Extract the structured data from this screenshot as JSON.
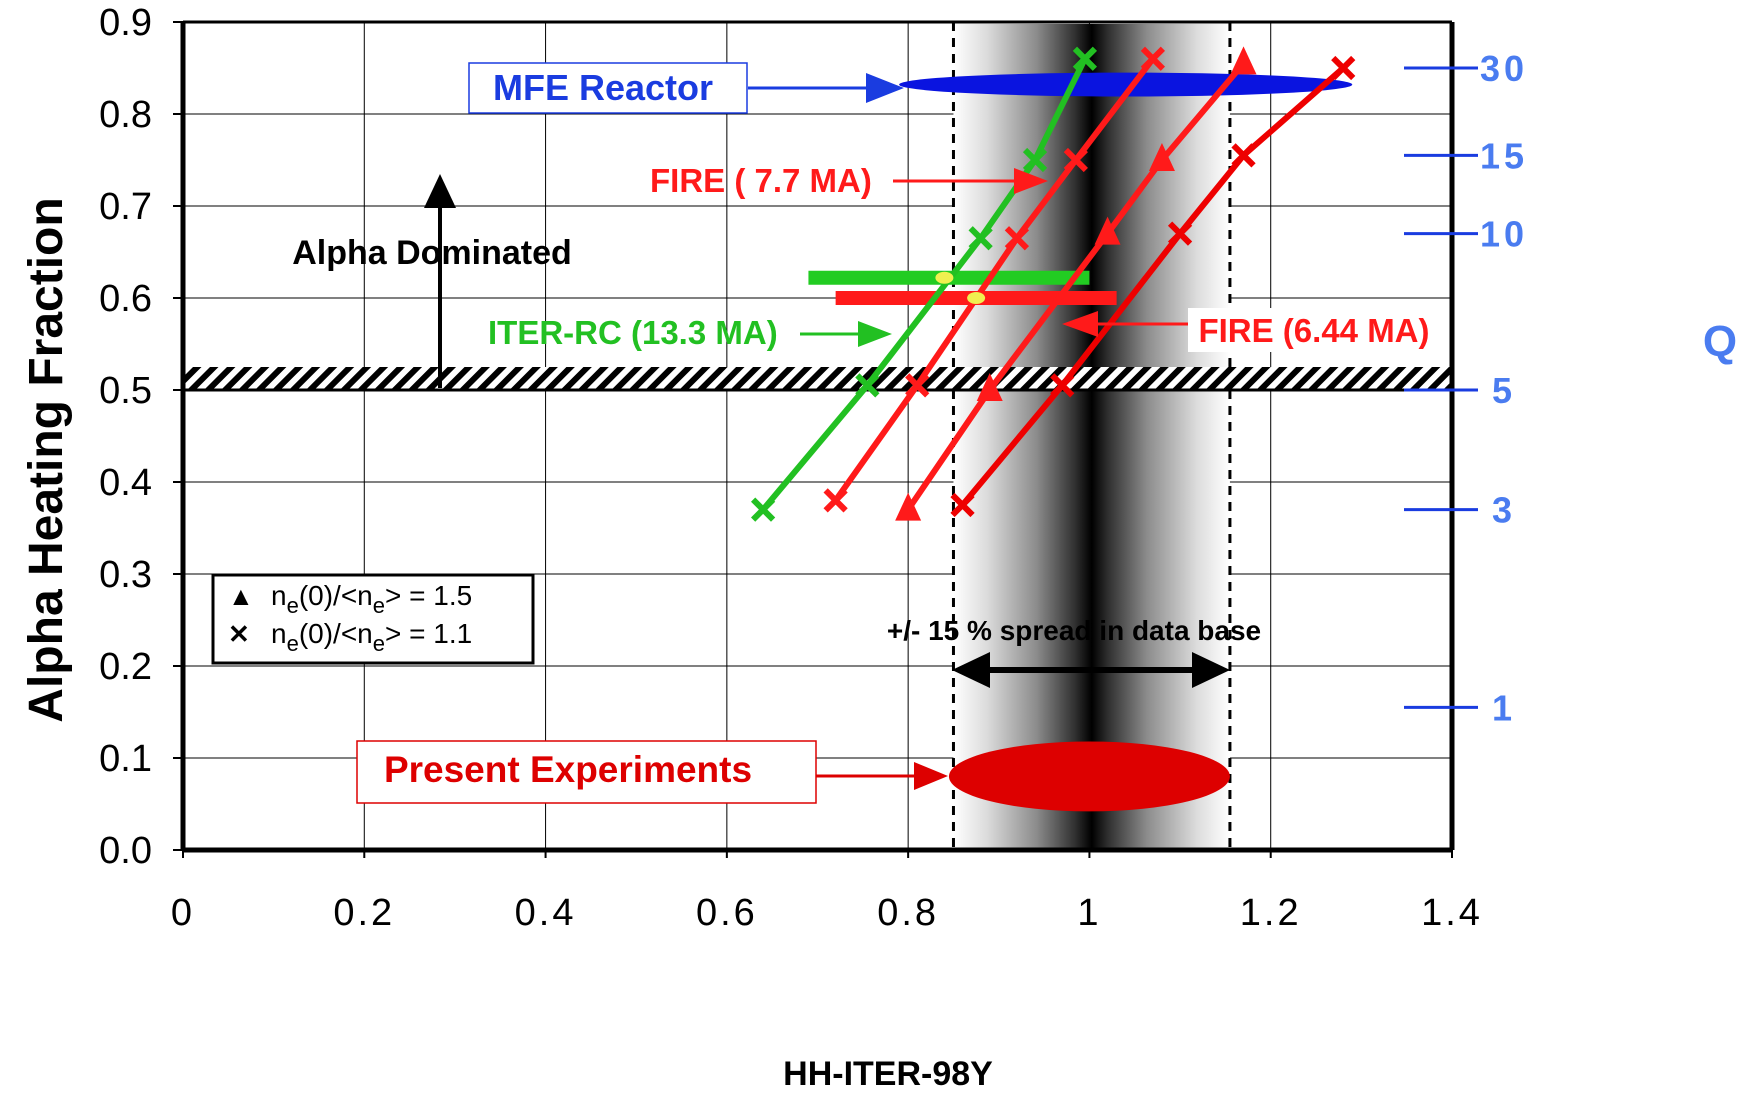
{
  "chart_data": {
    "type": "line",
    "title": "",
    "xlabel": "HH-ITER-98Y",
    "ylabel": "Alpha Heating Fraction",
    "y2label": "Q",
    "xlim": [
      0,
      1.4
    ],
    "ylim": [
      0,
      0.9
    ],
    "x_ticks": [
      "0",
      "0.2",
      "0.4",
      "0.6",
      "0.8",
      "1",
      "1.2",
      "1.4"
    ],
    "y_ticks": [
      "0.0",
      "0.1",
      "0.2",
      "0.3",
      "0.4",
      "0.5",
      "0.6",
      "0.7",
      "0.8",
      "0.9"
    ],
    "grid": true,
    "q_axis": [
      {
        "label": "30",
        "y": 0.85
      },
      {
        "label": "15",
        "y": 0.755
      },
      {
        "label": "10",
        "y": 0.67
      },
      {
        "label": "5",
        "y": 0.5
      },
      {
        "label": "3",
        "y": 0.37
      },
      {
        "label": "1",
        "y": 0.155
      }
    ],
    "series": [
      {
        "color": "#22c022",
        "marker": "x",
        "points": [
          [
            0.64,
            0.37
          ],
          [
            0.755,
            0.505
          ],
          [
            0.88,
            0.665
          ],
          [
            0.94,
            0.75
          ],
          [
            0.995,
            0.86
          ]
        ]
      },
      {
        "color": "#ff1a1a",
        "marker": "x",
        "points": [
          [
            0.72,
            0.38
          ],
          [
            0.81,
            0.505
          ],
          [
            0.92,
            0.665
          ],
          [
            0.985,
            0.75
          ],
          [
            1.07,
            0.86
          ]
        ]
      },
      {
        "color": "#ff1a1a",
        "marker": "triangle",
        "points": [
          [
            0.8,
            0.37
          ],
          [
            0.89,
            0.5
          ],
          [
            1.02,
            0.67
          ],
          [
            1.08,
            0.75
          ],
          [
            1.17,
            0.855
          ]
        ]
      },
      {
        "color": "#ee0000",
        "marker": "x",
        "points": [
          [
            0.86,
            0.375
          ],
          [
            0.97,
            0.505
          ],
          [
            1.1,
            0.67
          ],
          [
            1.17,
            0.755
          ],
          [
            1.28,
            0.85
          ]
        ]
      }
    ],
    "horizontal_bars": [
      {
        "color": "#22cc22",
        "x": [
          0.69,
          1.0
        ],
        "y": 0.622
      },
      {
        "color": "#ff1a1a",
        "x": [
          0.72,
          1.03
        ],
        "y": 0.6
      }
    ],
    "dots": [
      {
        "color": "#f0f050",
        "x": 0.84,
        "y": 0.622
      },
      {
        "color": "#f0f050",
        "x": 0.875,
        "y": 0.6
      }
    ],
    "threshold_band": {
      "y": [
        0.5,
        0.525
      ]
    },
    "spread_band": {
      "center": 1.0,
      "x": [
        0.85,
        1.155
      ]
    },
    "ellipses": [
      {
        "color": "#0a14e0",
        "cx": 1.04,
        "cy": 0.832,
        "rx": 0.25,
        "ry": 0.013
      },
      {
        "color": "#dd0000",
        "cx": 1.0,
        "cy": 0.08,
        "rx": 0.155,
        "ry": 0.038
      }
    ],
    "annotations": {
      "mfe": "MFE Reactor",
      "fire77": "FIRE ( 7.7 MA)",
      "alpha_dom": "Alpha Dominated",
      "iter": "ITER-RC (13.3 MA)",
      "fire644": "FIRE (6.44 MA)",
      "spread": "+/- 15 % spread in data base",
      "present": "Present Experiments"
    },
    "legend": {
      "placement": "lower-left",
      "entries": [
        {
          "marker": "▲",
          "n": "n",
          "sub": "e",
          "mid": "(0)/<n",
          "sub2": "e",
          "tail": "> = 1.5"
        },
        {
          "marker": "✕",
          "n": "n",
          "sub": "e",
          "mid": "(0)/<n",
          "sub2": "e",
          "tail": "> = 1.1"
        }
      ]
    }
  }
}
